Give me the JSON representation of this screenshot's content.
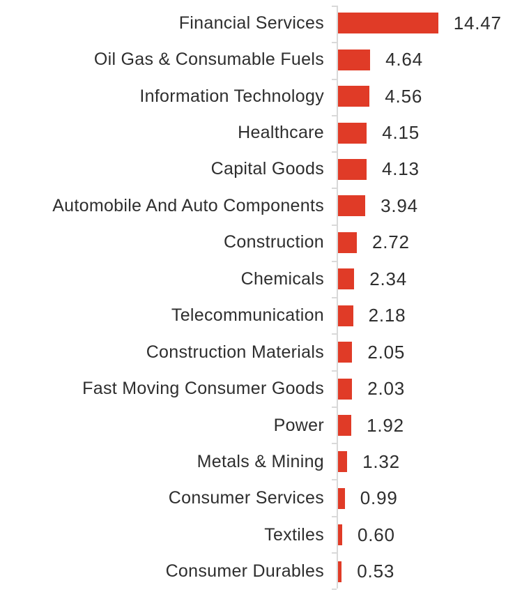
{
  "chart_data": {
    "type": "bar",
    "orientation": "horizontal",
    "title": "",
    "xlabel": "",
    "ylabel": "",
    "grid": false,
    "legend": false,
    "xlim": [
      0,
      15
    ],
    "categories": [
      "Financial Services",
      "Oil Gas & Consumable Fuels",
      "Information Technology",
      "Healthcare",
      "Capital Goods",
      "Automobile And Auto Components",
      "Construction",
      "Chemicals",
      "Telecommunication",
      "Construction Materials",
      "Fast Moving Consumer Goods",
      "Power",
      "Metals & Mining",
      "Consumer Services",
      "Textiles",
      "Consumer Durables"
    ],
    "values": [
      14.47,
      4.64,
      4.56,
      4.15,
      4.13,
      3.94,
      2.72,
      2.34,
      2.18,
      2.05,
      2.03,
      1.92,
      1.32,
      0.99,
      0.6,
      0.53
    ],
    "value_labels": [
      "14.47",
      "4.64",
      "4.56",
      "4.15",
      "4.13",
      "3.94",
      "2.72",
      "2.34",
      "2.18",
      "2.05",
      "2.03",
      "1.92",
      "1.32",
      "0.99",
      "0.60",
      "0.53"
    ],
    "colors": {
      "bar": "#e03b27",
      "axis": "#d9d9d9",
      "text": "#2e2e2e",
      "background": "#ffffff"
    }
  }
}
